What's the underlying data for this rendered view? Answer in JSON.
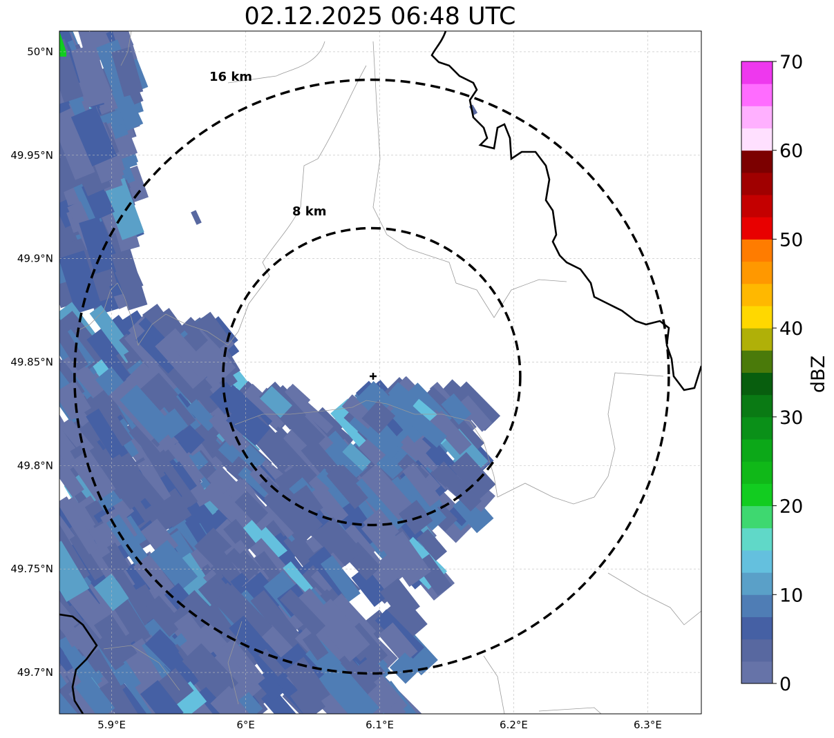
{
  "title": "02.12.2025 06:48 UTC",
  "map": {
    "x_ticks": [
      {
        "value": 5.9,
        "label": "5.9°E"
      },
      {
        "value": 6.0,
        "label": "6°E"
      },
      {
        "value": 6.1,
        "label": "6.1°E"
      },
      {
        "value": 6.2,
        "label": "6.2°E"
      },
      {
        "value": 6.3,
        "label": "6.3°E"
      }
    ],
    "y_ticks": [
      {
        "value": 50.0,
        "label": "50°N"
      },
      {
        "value": 49.95,
        "label": "49.95°N"
      },
      {
        "value": 49.9,
        "label": "49.9°N"
      },
      {
        "value": 49.85,
        "label": "49.85°N"
      },
      {
        "value": 49.8,
        "label": "49.8°N"
      },
      {
        "value": 49.75,
        "label": "49.75°N"
      },
      {
        "value": 49.7,
        "label": "49.7°N"
      }
    ],
    "lon_range": [
      5.861,
      6.34
    ],
    "lat_range": [
      49.68,
      50.01
    ],
    "radar_site": {
      "lon": 6.094,
      "lat": 49.843
    },
    "range_rings": [
      {
        "radius_km": 8,
        "label": "8 km"
      },
      {
        "radius_km": 16,
        "label": "16 km"
      }
    ]
  },
  "colorbar": {
    "label": "dBZ",
    "min": 0,
    "max": 70,
    "step": 2.5,
    "ticks": [
      {
        "value": 0,
        "label": "0"
      },
      {
        "value": 10,
        "label": "10"
      },
      {
        "value": 20,
        "label": "20"
      },
      {
        "value": 30,
        "label": "30"
      },
      {
        "value": 40,
        "label": "40"
      },
      {
        "value": 50,
        "label": "50"
      },
      {
        "value": 60,
        "label": "60"
      },
      {
        "value": 70,
        "label": "70"
      }
    ],
    "colors": [
      "#6673a8",
      "#5868a0",
      "#4560a4",
      "#4f7db5",
      "#5aa0c8",
      "#64c0de",
      "#60d8c8",
      "#3ed870",
      "#12cc20",
      "#10b818",
      "#0ca818",
      "#0a9018",
      "#0a7a14",
      "#085e0e",
      "#4a7a0a",
      "#b0b008",
      "#ffd800",
      "#ffb800",
      "#ff9800",
      "#ff7c00",
      "#e80000",
      "#c40000",
      "#a00000",
      "#7c0000",
      "#ffe0ff",
      "#ffb0ff",
      "#ff6cff",
      "#ee38ee"
    ]
  }
}
